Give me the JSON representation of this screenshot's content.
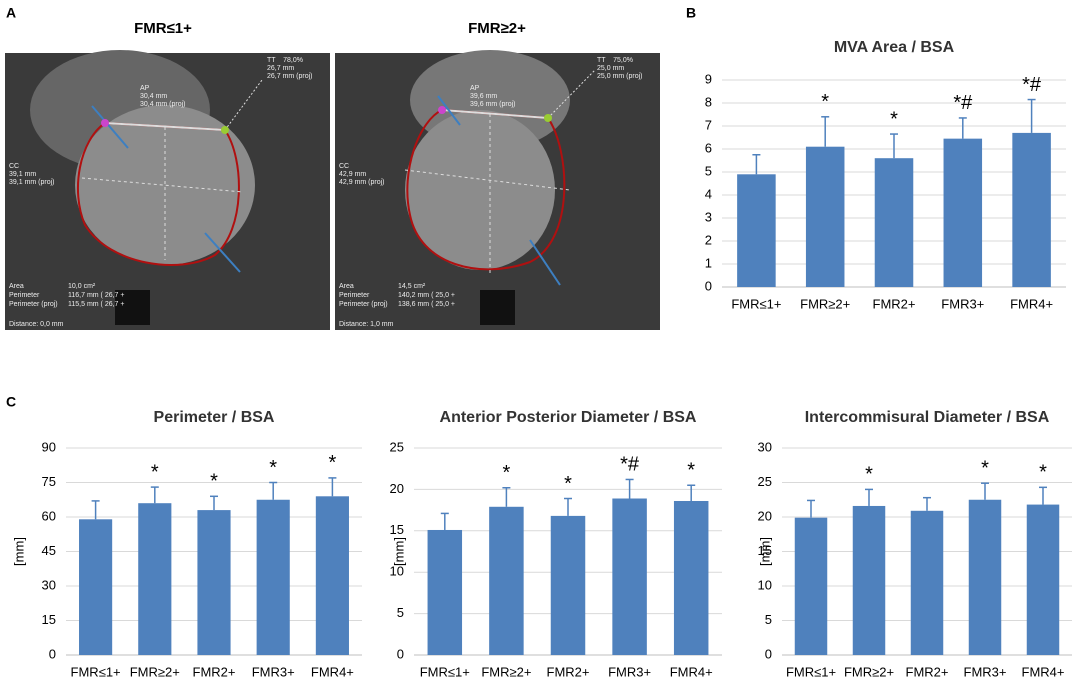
{
  "figure": {
    "panel_labels": [
      "A",
      "B",
      "C"
    ]
  },
  "ct_images": [
    {
      "title": "FMR≤1+",
      "texts": [
        "78,0%",
        "TT",
        "26,7 mm",
        "26,7 mm (proj)",
        "AP",
        "30,4 mm",
        "30,4 mm (proj)",
        "CC",
        "39,1 mm",
        "39,1 mm (proj)",
        "Area",
        "10,0 cm²",
        "Perimeter",
        "116,7 mm ( 26,7 +",
        "Perimeter (proj)",
        "115,5 mm ( 26,7 +",
        "Distance: 0,0 mm"
      ]
    },
    {
      "title": "FMR≥2+",
      "texts": [
        "75,0%",
        "TT",
        "25,0 mm",
        "25,0 mm (proj)",
        "AP",
        "39,6 mm",
        "39,6 mm (proj)",
        "CC",
        "42,9 mm",
        "42,9 mm (proj)",
        "Area",
        "14,5 cm²",
        "Perimeter",
        "140,2 mm ( 25,0 +",
        "Perimeter (proj)",
        "138,6 mm ( 25,0 +",
        "Distance: 1,0 mm"
      ]
    }
  ],
  "chart_data": [
    {
      "type": "bar",
      "title": "MVA Area / BSA",
      "categories": [
        "FMR≤1+",
        "FMR≥2+",
        "FMR2+",
        "FMR3+",
        "FMR4+"
      ],
      "values": [
        4.9,
        6.1,
        5.6,
        6.45,
        6.7
      ],
      "errors": [
        0.85,
        1.3,
        1.05,
        0.9,
        1.45
      ],
      "annotations": [
        null,
        "*",
        "*",
        "*#",
        "*#"
      ],
      "ylim": [
        0,
        9
      ],
      "yticks": [
        0,
        1,
        2,
        3,
        4,
        5,
        6,
        7,
        8,
        9
      ],
      "color": "#4f81bd",
      "grid": true
    },
    {
      "type": "bar",
      "title": "Perimeter / BSA",
      "ylabel": "[mm]",
      "categories": [
        "FMR≤1+",
        "FMR≥2+",
        "FMR2+",
        "FMR3+",
        "FMR4+"
      ],
      "values": [
        59,
        66,
        63,
        67.5,
        69
      ],
      "errors": [
        8,
        7,
        6,
        7.5,
        8
      ],
      "annotations": [
        null,
        "*",
        "*",
        "*",
        "*"
      ],
      "ylim": [
        0,
        90
      ],
      "yticks": [
        0,
        15,
        30,
        45,
        60,
        75,
        90
      ],
      "color": "#4f81bd",
      "grid": true
    },
    {
      "type": "bar",
      "title": "Anterior Posterior Diameter / BSA",
      "ylabel": "[mm]",
      "categories": [
        "FMR≤1+",
        "FMR≥2+",
        "FMR2+",
        "FMR3+",
        "FMR4+"
      ],
      "values": [
        15.1,
        17.9,
        16.8,
        18.9,
        18.6
      ],
      "errors": [
        2,
        2.3,
        2.1,
        2.3,
        1.9
      ],
      "annotations": [
        null,
        "*",
        "*",
        "*#",
        "*"
      ],
      "ylim": [
        0,
        25
      ],
      "yticks": [
        0,
        5,
        10,
        15,
        20,
        25
      ],
      "color": "#4f81bd",
      "grid": true
    },
    {
      "type": "bar",
      "title": "Intercommisural Diameter / BSA",
      "ylabel": "[mm]",
      "categories": [
        "FMR≤1+",
        "FMR≥2+",
        "FMR2+",
        "FMR3+",
        "FMR4+"
      ],
      "values": [
        19.9,
        21.6,
        20.9,
        22.5,
        21.8
      ],
      "errors": [
        2.5,
        2.4,
        1.9,
        2.4,
        2.5
      ],
      "annotations": [
        null,
        "*",
        null,
        "*",
        "*"
      ],
      "ylim": [
        0,
        30
      ],
      "yticks": [
        0,
        5,
        10,
        15,
        20,
        25,
        30
      ],
      "color": "#4f81bd",
      "grid": true
    }
  ]
}
